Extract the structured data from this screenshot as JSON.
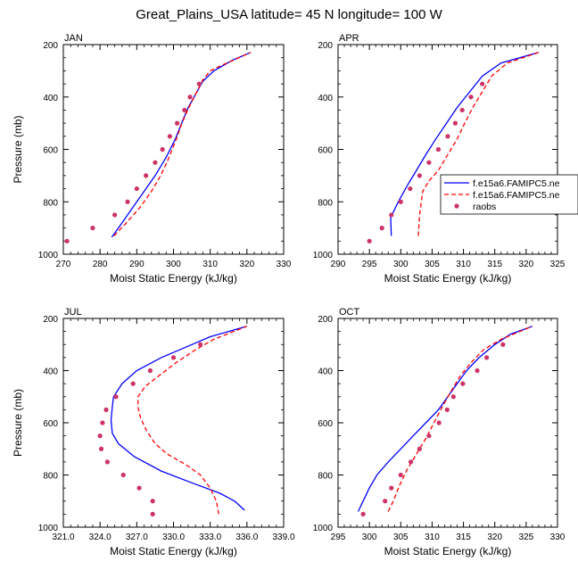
{
  "figure_title": "Great_Plains_USA  latitude= 45 N longitude= 100 W",
  "chart_data": [
    {
      "type": "line",
      "panel": "JAN",
      "xlabel": "Moist Static Energy (kJ/kg)",
      "ylabel": "Pressure (mb)",
      "xlim": [
        270,
        330
      ],
      "ylim": [
        1000,
        200
      ],
      "xticks": [
        270,
        280,
        290,
        300,
        310,
        320,
        330
      ],
      "xtick_labels": [
        "270",
        "280",
        "290",
        "300",
        "310",
        "320",
        "330"
      ],
      "yticks": [
        200,
        400,
        600,
        800,
        1000
      ],
      "ytick_labels": [
        "200",
        "400",
        "600",
        "800",
        "1000"
      ],
      "series": [
        {
          "name": "f.e15a6.FAMIPC5.ne",
          "style": "solid",
          "color": "#0000ff",
          "points": [
            [
              283.2,
              935
            ],
            [
              286,
              880
            ],
            [
              289,
              820
            ],
            [
              292,
              760
            ],
            [
              295,
              700
            ],
            [
              298,
              630
            ],
            [
              300.5,
              560
            ],
            [
              302.5,
              490
            ],
            [
              304,
              440
            ],
            [
              306,
              390
            ],
            [
              308,
              340
            ],
            [
              311,
              300
            ],
            [
              316,
              260
            ],
            [
              321,
              230
            ]
          ]
        },
        {
          "name": "f.e15a6.FAMIPC5.ne",
          "style": "dashed",
          "color": "#ff0000",
          "points": [
            [
              283.8,
              930
            ],
            [
              287.5,
              875
            ],
            [
              291,
              820
            ],
            [
              294,
              760
            ],
            [
              296.5,
              700
            ],
            [
              298.5,
              640
            ],
            [
              300.5,
              570
            ],
            [
              302.3,
              500
            ],
            [
              304,
              445
            ],
            [
              306,
              390
            ],
            [
              308,
              335
            ],
            [
              310,
              300
            ],
            [
              313,
              280
            ],
            [
              317,
              255
            ],
            [
              321,
              230
            ]
          ]
        },
        {
          "name": "raobs",
          "style": "dots",
          "color": "#cc3366",
          "points": [
            [
              271,
              950
            ],
            [
              278,
              900
            ],
            [
              284,
              850
            ],
            [
              287.5,
              800
            ],
            [
              290,
              750
            ],
            [
              292.5,
              700
            ],
            [
              295,
              650
            ],
            [
              297,
              600
            ],
            [
              299,
              550
            ],
            [
              301,
              500
            ],
            [
              303,
              450
            ],
            [
              304.5,
              400
            ],
            [
              307,
              350
            ]
          ]
        }
      ]
    },
    {
      "type": "line",
      "panel": "APR",
      "xlabel": "Moist Static Energy (kJ/kg)",
      "ylabel": "",
      "xlim": [
        290,
        325
      ],
      "ylim": [
        1000,
        200
      ],
      "xticks": [
        290,
        295,
        300,
        305,
        310,
        315,
        320,
        325
      ],
      "xtick_labels": [
        "290",
        "295",
        "300",
        "305",
        "310",
        "315",
        "320",
        "325"
      ],
      "yticks": [
        200,
        400,
        600,
        800,
        1000
      ],
      "ytick_labels": [
        "200",
        "400",
        "600",
        "800",
        "1000"
      ],
      "series": [
        {
          "name": "f.e15a6.FAMIPC5.ne",
          "style": "solid",
          "color": "#0000ff",
          "points": [
            [
              298.5,
              930
            ],
            [
              298.4,
              860
            ],
            [
              299.6,
              800
            ],
            [
              301,
              740
            ],
            [
              302.5,
              680
            ],
            [
              304,
              620
            ],
            [
              305.6,
              560
            ],
            [
              307.3,
              500
            ],
            [
              309,
              440
            ],
            [
              311,
              380
            ],
            [
              313,
              320
            ],
            [
              316,
              270
            ],
            [
              322,
              230
            ]
          ]
        },
        {
          "name": "f.e15a6.FAMIPC5.ne",
          "style": "dashed",
          "color": "#ff0000",
          "points": [
            [
              302.8,
              930
            ],
            [
              303,
              850
            ],
            [
              303.5,
              760
            ],
            [
              304.5,
              720
            ],
            [
              306,
              680
            ],
            [
              307.5,
              620
            ],
            [
              309,
              560
            ],
            [
              310.2,
              500
            ],
            [
              311.5,
              440
            ],
            [
              313,
              380
            ],
            [
              314.5,
              320
            ],
            [
              317,
              270
            ],
            [
              322,
              230
            ]
          ]
        },
        {
          "name": "raobs",
          "style": "dots",
          "color": "#cc3366",
          "points": [
            [
              295,
              950
            ],
            [
              297,
              900
            ],
            [
              298.5,
              850
            ],
            [
              300,
              800
            ],
            [
              301.5,
              750
            ],
            [
              303,
              700
            ],
            [
              304.5,
              650
            ],
            [
              306,
              600
            ],
            [
              307.5,
              550
            ],
            [
              308.7,
              500
            ],
            [
              309.8,
              450
            ],
            [
              311.2,
              400
            ],
            [
              313,
              350
            ]
          ]
        }
      ]
    },
    {
      "type": "line",
      "panel": "JUL",
      "xlabel": "Moist Static Energy (kJ/kg)",
      "ylabel": "Pressure (mb)",
      "xlim": [
        321,
        339
      ],
      "ylim": [
        1000,
        200
      ],
      "xticks": [
        321,
        324,
        327,
        330,
        333,
        336,
        339
      ],
      "xtick_labels": [
        "321.0",
        "324.0",
        "327.0",
        "330.0",
        "333.0",
        "336.0",
        "339.0"
      ],
      "yticks": [
        200,
        400,
        600,
        800,
        1000
      ],
      "ytick_labels": [
        "200",
        "400",
        "600",
        "800",
        "1000"
      ],
      "series": [
        {
          "name": "f.e15a6.FAMIPC5.ne",
          "style": "solid",
          "color": "#0000ff",
          "points": [
            [
              335.8,
              935
            ],
            [
              335,
              900
            ],
            [
              333.8,
              870
            ],
            [
              331.5,
              830
            ],
            [
              329,
              785
            ],
            [
              326.8,
              730
            ],
            [
              325.5,
              680
            ],
            [
              325,
              640
            ],
            [
              324.9,
              590
            ],
            [
              325,
              540
            ],
            [
              325.1,
              500
            ],
            [
              325.8,
              450
            ],
            [
              327,
              400
            ],
            [
              329,
              350
            ],
            [
              331.5,
              300
            ],
            [
              333,
              270
            ],
            [
              336,
              230
            ]
          ]
        },
        {
          "name": "f.e15a6.FAMIPC5.ne",
          "style": "dashed",
          "color": "#ff0000",
          "points": [
            [
              333.7,
              950
            ],
            [
              333.5,
              900
            ],
            [
              333,
              850
            ],
            [
              332.2,
              800
            ],
            [
              331,
              760
            ],
            [
              329.5,
              720
            ],
            [
              328.5,
              680
            ],
            [
              327.8,
              630
            ],
            [
              327.3,
              580
            ],
            [
              327.1,
              540
            ],
            [
              327.1,
              500
            ],
            [
              327.7,
              460
            ],
            [
              328.8,
              420
            ],
            [
              330.2,
              370
            ],
            [
              331.8,
              320
            ],
            [
              333.3,
              280
            ],
            [
              336,
              230
            ]
          ]
        },
        {
          "name": "raobs",
          "style": "dots",
          "color": "#cc3366",
          "points": [
            [
              328.3,
              950
            ],
            [
              328.3,
              900
            ],
            [
              327.2,
              850
            ],
            [
              325.9,
              800
            ],
            [
              324.6,
              750
            ],
            [
              324.1,
              700
            ],
            [
              324,
              650
            ],
            [
              324.2,
              600
            ],
            [
              324.5,
              550
            ],
            [
              325.3,
              500
            ],
            [
              326.7,
              450
            ],
            [
              328.1,
              400
            ],
            [
              330,
              350
            ],
            [
              332.2,
              300
            ]
          ]
        }
      ]
    },
    {
      "type": "line",
      "panel": "OCT",
      "xlabel": "Moist Static Energy (kJ/kg)",
      "ylabel": "",
      "xlim": [
        295,
        330
      ],
      "ylim": [
        1000,
        200
      ],
      "xticks": [
        295,
        300,
        305,
        310,
        315,
        320,
        325,
        330
      ],
      "xtick_labels": [
        "295",
        "300",
        "305",
        "310",
        "315",
        "320",
        "325",
        "330"
      ],
      "yticks": [
        200,
        400,
        600,
        800,
        1000
      ],
      "ytick_labels": [
        "200",
        "400",
        "600",
        "800",
        "1000"
      ],
      "series": [
        {
          "name": "f.e15a6.FAMIPC5.ne",
          "style": "solid",
          "color": "#0000ff",
          "points": [
            [
              298.2,
              940
            ],
            [
              299,
              900
            ],
            [
              300,
              850
            ],
            [
              301.2,
              800
            ],
            [
              303,
              750
            ],
            [
              305,
              700
            ],
            [
              307,
              650
            ],
            [
              309,
              600
            ],
            [
              311,
              550
            ],
            [
              312.5,
              500
            ],
            [
              314,
              450
            ],
            [
              315.5,
              400
            ],
            [
              317.5,
              350
            ],
            [
              320,
              300
            ],
            [
              322.5,
              260
            ],
            [
              326,
              230
            ]
          ]
        },
        {
          "name": "f.e15a6.FAMIPC5.ne",
          "style": "dashed",
          "color": "#ff0000",
          "points": [
            [
              303,
              940
            ],
            [
              303.8,
              900
            ],
            [
              304.8,
              840
            ],
            [
              306,
              780
            ],
            [
              307.5,
              720
            ],
            [
              309,
              660
            ],
            [
              310.3,
              600
            ],
            [
              311.6,
              540
            ],
            [
              313,
              480
            ],
            [
              314.5,
              420
            ],
            [
              316.2,
              370
            ],
            [
              318.2,
              320
            ],
            [
              321,
              280
            ],
            [
              326,
              230
            ]
          ]
        },
        {
          "name": "raobs",
          "style": "dots",
          "color": "#cc3366",
          "points": [
            [
              299,
              950
            ],
            [
              302.5,
              900
            ],
            [
              303.5,
              850
            ],
            [
              305,
              800
            ],
            [
              306.6,
              750
            ],
            [
              308,
              700
            ],
            [
              309.5,
              650
            ],
            [
              311.1,
              600
            ],
            [
              312.4,
              550
            ],
            [
              313.4,
              500
            ],
            [
              314.9,
              450
            ],
            [
              317.2,
              400
            ],
            [
              318.7,
              350
            ],
            [
              321.3,
              300
            ]
          ]
        }
      ]
    }
  ],
  "legend": {
    "placement": "right of APR panel",
    "entries": [
      {
        "label": "f.e15a6.FAMIPC5.ne",
        "style": "solid",
        "color": "#0000ff"
      },
      {
        "label": "f.e15a6.FAMIPC5.ne",
        "style": "dashed",
        "color": "#ff0000"
      },
      {
        "label": "raobs",
        "style": "dots",
        "color": "#cc3366"
      }
    ]
  }
}
